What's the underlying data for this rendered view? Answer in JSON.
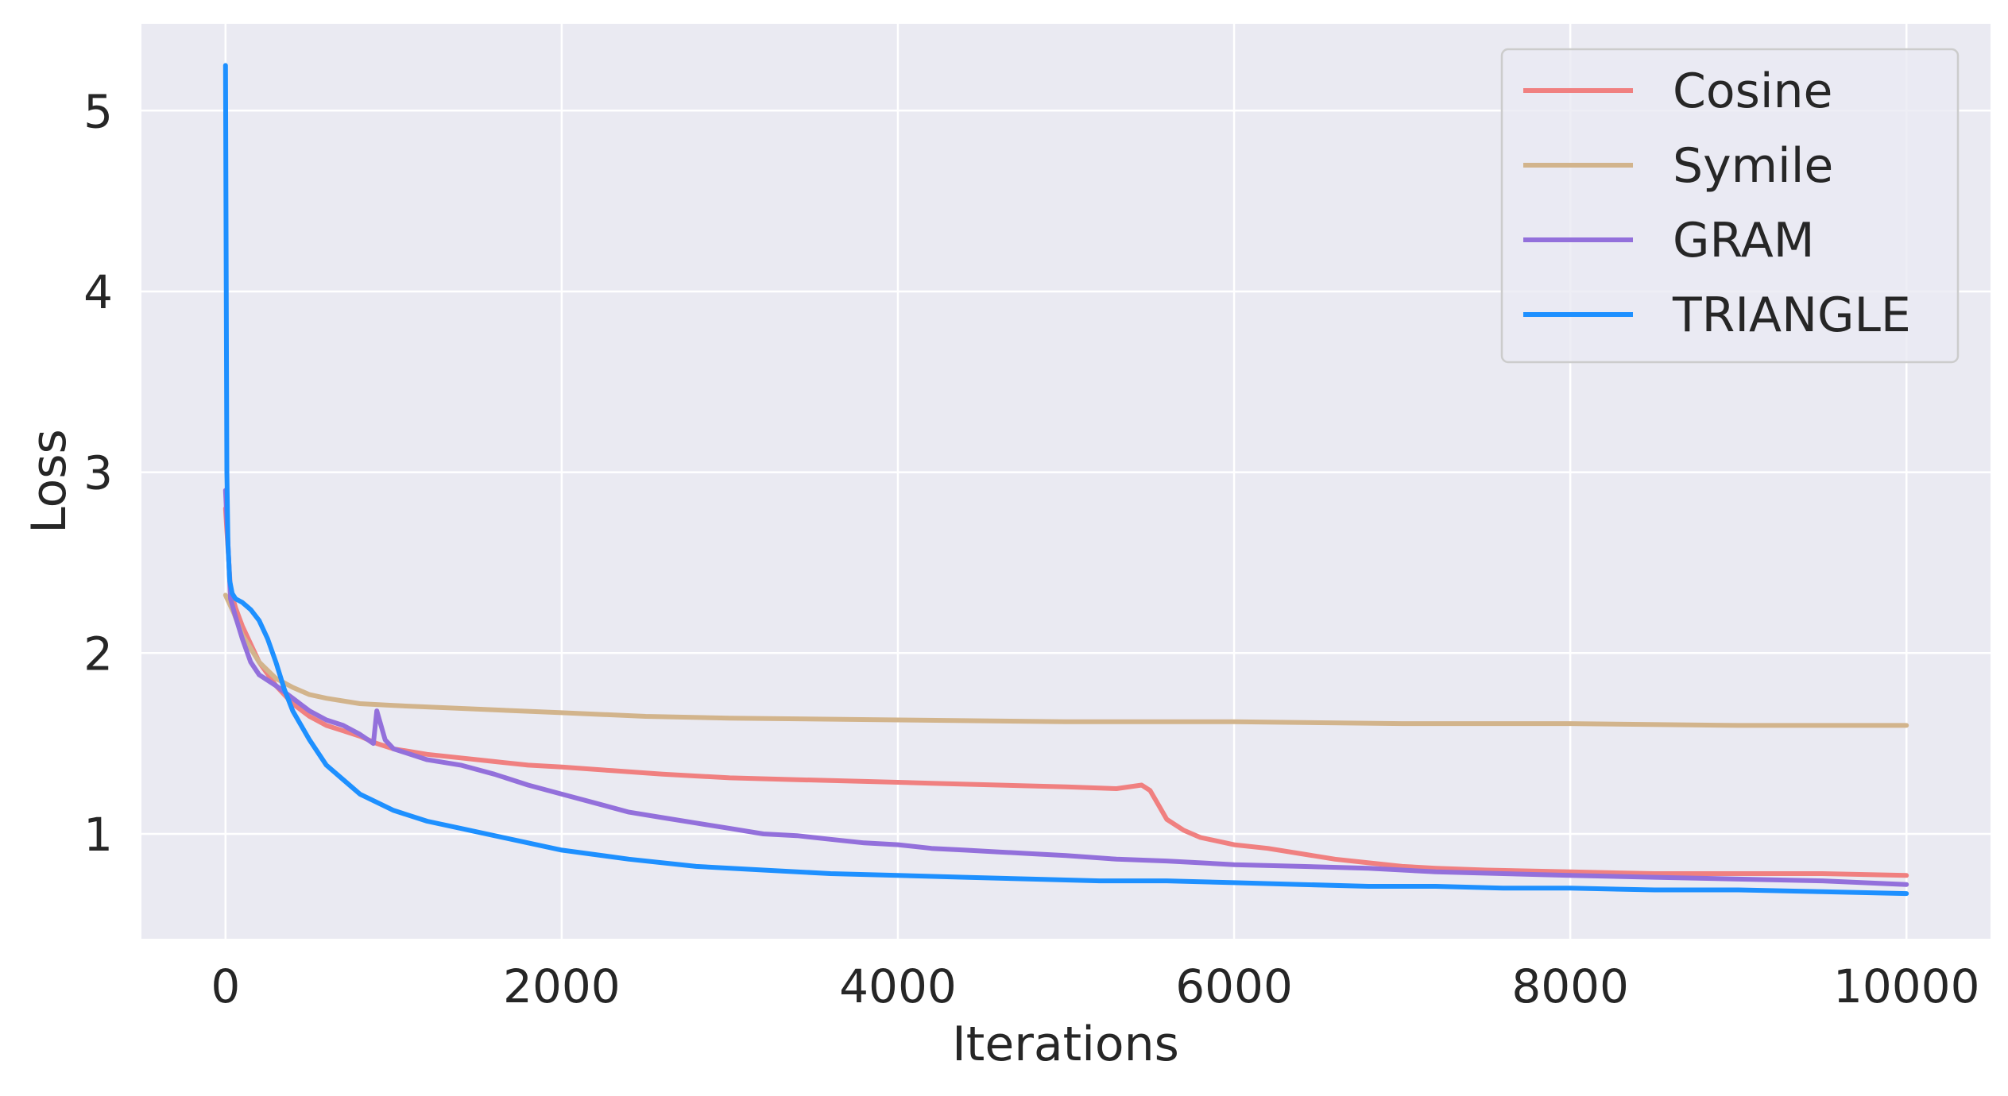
{
  "chart_data": {
    "type": "line",
    "title": "",
    "xlabel": "Iterations",
    "ylabel": "Loss",
    "xlim": [
      -500,
      10500
    ],
    "ylim": [
      0.42,
      5.48
    ],
    "xticks": [
      0,
      2000,
      4000,
      6000,
      8000,
      10000
    ],
    "xtick_labels": [
      "0",
      "2000",
      "4000",
      "6000",
      "8000",
      "10000"
    ],
    "yticks": [
      1,
      2,
      3,
      4,
      5
    ],
    "ytick_labels": [
      "1",
      "2",
      "3",
      "4",
      "5"
    ],
    "grid": true,
    "legend_position": "top-right",
    "colors": {
      "background": "#eaeaf2",
      "grid": "#ffffff",
      "text": "#262626"
    },
    "series": [
      {
        "name": "Cosine",
        "color": "#f08080",
        "x": [
          0,
          30,
          60,
          100,
          150,
          200,
          300,
          400,
          500,
          600,
          700,
          800,
          900,
          1000,
          1200,
          1400,
          1600,
          1800,
          2000,
          2300,
          2600,
          3000,
          3400,
          3800,
          4200,
          4600,
          5000,
          5300,
          5450,
          5500,
          5550,
          5600,
          5700,
          5800,
          6000,
          6200,
          6400,
          6600,
          6800,
          7000,
          7200,
          7500,
          8000,
          8500,
          9000,
          9500,
          10000
        ],
        "y": [
          2.8,
          2.35,
          2.25,
          2.15,
          2.05,
          1.95,
          1.82,
          1.72,
          1.65,
          1.6,
          1.57,
          1.54,
          1.5,
          1.47,
          1.44,
          1.42,
          1.4,
          1.38,
          1.37,
          1.35,
          1.33,
          1.31,
          1.3,
          1.29,
          1.28,
          1.27,
          1.26,
          1.25,
          1.27,
          1.24,
          1.16,
          1.08,
          1.02,
          0.98,
          0.94,
          0.92,
          0.89,
          0.86,
          0.84,
          0.82,
          0.81,
          0.8,
          0.79,
          0.78,
          0.78,
          0.78,
          0.77
        ]
      },
      {
        "name": "Symile",
        "color": "#d2b48c",
        "x": [
          0,
          50,
          100,
          200,
          300,
          400,
          500,
          600,
          800,
          1000,
          1500,
          2000,
          2500,
          3000,
          4000,
          5000,
          6000,
          7000,
          8000,
          9000,
          10000
        ],
        "y": [
          2.32,
          2.22,
          2.1,
          1.95,
          1.86,
          1.81,
          1.77,
          1.75,
          1.72,
          1.71,
          1.69,
          1.67,
          1.65,
          1.64,
          1.63,
          1.62,
          1.62,
          1.61,
          1.61,
          1.6,
          1.6
        ]
      },
      {
        "name": "GRAM",
        "color": "#9370db",
        "x": [
          0,
          30,
          60,
          100,
          150,
          200,
          300,
          400,
          500,
          600,
          700,
          800,
          880,
          900,
          950,
          1000,
          1200,
          1400,
          1600,
          1800,
          2000,
          2200,
          2400,
          2600,
          2800,
          3000,
          3200,
          3400,
          3600,
          3800,
          4000,
          4200,
          4400,
          4600,
          4800,
          5000,
          5300,
          5600,
          6000,
          6400,
          6800,
          7200,
          7600,
          8000,
          8500,
          9000,
          9500,
          10000
        ],
        "y": [
          2.9,
          2.3,
          2.2,
          2.08,
          1.95,
          1.88,
          1.82,
          1.75,
          1.68,
          1.63,
          1.6,
          1.55,
          1.5,
          1.68,
          1.52,
          1.47,
          1.41,
          1.38,
          1.33,
          1.27,
          1.22,
          1.17,
          1.12,
          1.09,
          1.06,
          1.03,
          1.0,
          0.99,
          0.97,
          0.95,
          0.94,
          0.92,
          0.91,
          0.9,
          0.89,
          0.88,
          0.86,
          0.85,
          0.83,
          0.82,
          0.81,
          0.79,
          0.78,
          0.77,
          0.76,
          0.75,
          0.74,
          0.72
        ]
      },
      {
        "name": "TRIANGLE",
        "color": "#1e90ff",
        "x": [
          0,
          8,
          15,
          25,
          40,
          60,
          100,
          150,
          200,
          250,
          300,
          350,
          400,
          500,
          600,
          700,
          800,
          1000,
          1200,
          1400,
          1600,
          1800,
          2000,
          2400,
          2800,
          3200,
          3600,
          4000,
          4400,
          4800,
          5200,
          5600,
          6000,
          6400,
          6800,
          7200,
          7600,
          8000,
          8500,
          9000,
          9500,
          10000
        ],
        "y": [
          5.25,
          3.0,
          2.6,
          2.4,
          2.33,
          2.3,
          2.28,
          2.24,
          2.18,
          2.08,
          1.95,
          1.8,
          1.68,
          1.52,
          1.38,
          1.3,
          1.22,
          1.13,
          1.07,
          1.03,
          0.99,
          0.95,
          0.91,
          0.86,
          0.82,
          0.8,
          0.78,
          0.77,
          0.76,
          0.75,
          0.74,
          0.74,
          0.73,
          0.72,
          0.71,
          0.71,
          0.7,
          0.7,
          0.69,
          0.69,
          0.68,
          0.67
        ]
      }
    ]
  }
}
